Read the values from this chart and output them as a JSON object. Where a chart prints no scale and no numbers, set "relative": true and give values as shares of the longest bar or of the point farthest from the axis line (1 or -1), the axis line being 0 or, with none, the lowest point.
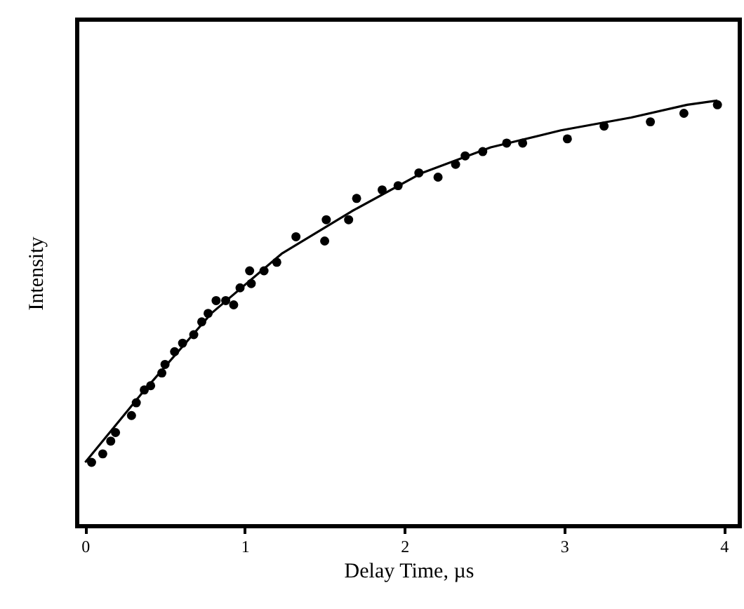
{
  "chart_data": {
    "type": "scatter",
    "xlabel": "Delay Time, µs",
    "ylabel": "Intensity",
    "relative": true,
    "xlim": [
      -0.05,
      4.1
    ],
    "xticks": [
      0,
      1,
      2,
      3,
      4
    ],
    "series": [
      {
        "marker": "circle",
        "color": "#000000",
        "x": [
          0.04,
          0.11,
          0.16,
          0.19,
          0.29,
          0.32,
          0.37,
          0.41,
          0.48,
          0.5,
          0.56,
          0.61,
          0.68,
          0.73,
          0.77,
          0.82,
          0.88,
          0.93,
          0.97,
          1.03,
          1.04,
          1.12,
          1.2,
          1.32,
          1.5,
          1.51,
          1.65,
          1.7,
          1.86,
          1.96,
          2.09,
          2.21,
          2.32,
          2.38,
          2.49,
          2.64,
          2.74,
          3.02,
          3.25,
          3.54,
          3.75,
          3.96
        ],
        "values": [
          0.15,
          0.17,
          0.2,
          0.22,
          0.26,
          0.29,
          0.32,
          0.33,
          0.36,
          0.38,
          0.41,
          0.43,
          0.45,
          0.48,
          0.5,
          0.53,
          0.53,
          0.52,
          0.56,
          0.6,
          0.57,
          0.6,
          0.62,
          0.68,
          0.67,
          0.72,
          0.72,
          0.77,
          0.79,
          0.8,
          0.83,
          0.82,
          0.85,
          0.87,
          0.88,
          0.9,
          0.9,
          0.91,
          0.94,
          0.95,
          0.97,
          0.99
        ]
      },
      {
        "type": "line",
        "color": "#000000",
        "line_style": "solid",
        "x": [
          0,
          0.35,
          0.79,
          1.23,
          1.67,
          2.11,
          2.54,
          2.98,
          3.42,
          3.77,
          3.96
        ],
        "values": [
          0.15,
          0.31,
          0.5,
          0.64,
          0.74,
          0.83,
          0.89,
          0.93,
          0.96,
          0.99,
          1.0
        ]
      }
    ]
  }
}
